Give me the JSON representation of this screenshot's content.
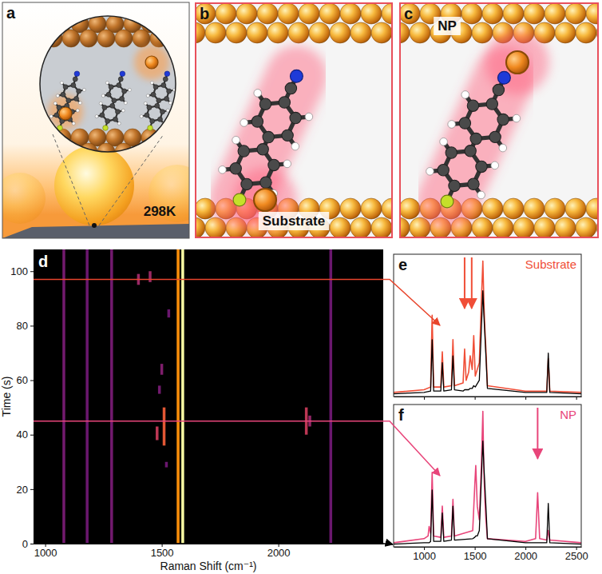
{
  "illustrations": [
    {
      "label": "a",
      "text": "298K"
    },
    {
      "label": "b",
      "text": "Substrate"
    },
    {
      "label": "c",
      "text": "NP"
    }
  ],
  "chart_data": [
    {
      "type": "heatmap",
      "panel": "d",
      "xlabel": "Raman Shift (cm⁻¹)",
      "ylabel": "Time (s)",
      "xlim": [
        950,
        2450
      ],
      "xticks": [
        1000,
        1500,
        2000
      ],
      "ylim": [
        0,
        108
      ],
      "yticks": [
        0,
        20,
        40,
        60,
        80,
        100
      ],
      "zlim": [
        0,
        1
      ],
      "cells": [
        {
          "x": 1080,
          "y": [
            0,
            108
          ],
          "value": 0.32
        },
        {
          "x": 1180,
          "y": [
            0,
            108
          ],
          "value": 0.3
        },
        {
          "x": 1285,
          "y": [
            0,
            108
          ],
          "value": 0.32
        },
        {
          "x": 1570,
          "y": [
            0,
            108
          ],
          "value": 0.75
        },
        {
          "x": 1590,
          "y": [
            0,
            108
          ],
          "value": 1
        },
        {
          "x": 2225,
          "y": [
            0,
            108
          ],
          "value": 0.3
        },
        {
          "x": 1510,
          "y": [
            36,
            50
          ],
          "value": 0.62
        },
        {
          "x": 1480,
          "y": [
            38,
            43
          ],
          "value": 0.5
        },
        {
          "x": 2120,
          "y": [
            40,
            50
          ],
          "value": 0.5
        },
        {
          "x": 2135,
          "y": [
            43,
            47
          ],
          "value": 0.4
        },
        {
          "x": 1400,
          "y": [
            95,
            99
          ],
          "value": 0.42
        },
        {
          "x": 1450,
          "y": [
            96,
            100
          ],
          "value": 0.42
        },
        {
          "x": 1490,
          "y": [
            55,
            58
          ],
          "value": 0.32
        },
        {
          "x": 1500,
          "y": [
            62,
            66
          ],
          "value": 0.35
        },
        {
          "x": 1520,
          "y": [
            28,
            30
          ],
          "value": 0.3
        },
        {
          "x": 1530,
          "y": [
            83,
            86
          ],
          "value": 0.3
        }
      ],
      "annotations": [
        {
          "time": 97,
          "color": "#e8452c",
          "panel": "e"
        },
        {
          "time": 45,
          "color": "#e8457a",
          "panel": "f"
        },
        {
          "time": 0,
          "color": "#000000",
          "panel": "f"
        }
      ]
    },
    {
      "type": "line",
      "panel": "e",
      "x": [
        700,
        1000,
        1065,
        1080,
        1095,
        1165,
        1180,
        1195,
        1270,
        1285,
        1300,
        1385,
        1400,
        1415,
        1440,
        1455,
        1475,
        1490,
        1505,
        1545,
        1565,
        1580,
        1590,
        1600,
        1610,
        1625,
        2000,
        2210,
        2225,
        2240,
        2550
      ],
      "series": [
        {
          "name": "Substrate",
          "color": "#f04e37",
          "values": [
            0.03,
            0.05,
            0.07,
            0.6,
            0.07,
            0.07,
            0.33,
            0.07,
            0.08,
            0.42,
            0.08,
            0.1,
            0.35,
            0.12,
            0.18,
            0.3,
            0.2,
            0.45,
            0.15,
            0.25,
            0.7,
            1.0,
            0.7,
            0.5,
            0.35,
            0.08,
            0.04,
            0.04,
            0.28,
            0.04,
            0.03
          ]
        },
        {
          "color": "#000000",
          "values": [
            0.02,
            0.03,
            0.04,
            0.42,
            0.04,
            0.04,
            0.25,
            0.04,
            0.05,
            0.3,
            0.05,
            0.04,
            0.05,
            0.05,
            0.05,
            0.06,
            0.06,
            0.08,
            0.07,
            0.12,
            0.5,
            0.78,
            0.6,
            0.45,
            0.3,
            0.06,
            0.03,
            0.03,
            0.32,
            0.03,
            0.02
          ]
        }
      ],
      "xlim": [
        700,
        2550
      ],
      "xticks": [
        1000,
        1500,
        2000,
        2500
      ],
      "ylim": [
        0,
        1.05
      ],
      "tick_labels": false,
      "arrows": [
        1400,
        1470
      ]
    },
    {
      "type": "line",
      "panel": "f",
      "x": [
        700,
        1000,
        1040,
        1050,
        1065,
        1080,
        1095,
        1165,
        1180,
        1195,
        1270,
        1285,
        1300,
        1480,
        1500,
        1510,
        1525,
        1545,
        1565,
        1580,
        1590,
        1600,
        1610,
        1625,
        2000,
        2100,
        2120,
        2140,
        2210,
        2225,
        2240,
        2550
      ],
      "series": [
        {
          "name": "NP",
          "color": "#e8457a",
          "values": [
            0.03,
            0.06,
            0.08,
            0.15,
            0.1,
            0.55,
            0.08,
            0.07,
            0.3,
            0.07,
            0.08,
            0.35,
            0.08,
            0.12,
            0.45,
            0.6,
            0.3,
            0.2,
            0.6,
            1.0,
            0.55,
            0.35,
            0.2,
            0.06,
            0.04,
            0.06,
            0.4,
            0.06,
            0.05,
            0.12,
            0.05,
            0.03
          ]
        },
        {
          "color": "#000000",
          "values": [
            0.02,
            0.03,
            0.03,
            0.03,
            0.04,
            0.42,
            0.04,
            0.04,
            0.25,
            0.04,
            0.05,
            0.3,
            0.05,
            0.06,
            0.07,
            0.08,
            0.08,
            0.12,
            0.5,
            0.78,
            0.6,
            0.45,
            0.3,
            0.06,
            0.03,
            0.03,
            0.03,
            0.03,
            0.03,
            0.32,
            0.03,
            0.02
          ]
        }
      ],
      "xlim": [
        700,
        2550
      ],
      "xticks": [
        1000,
        1500,
        2000,
        2500
      ],
      "ylim": [
        0,
        1.05
      ],
      "tick_labels": "x",
      "arrows": [
        2120
      ]
    }
  ]
}
